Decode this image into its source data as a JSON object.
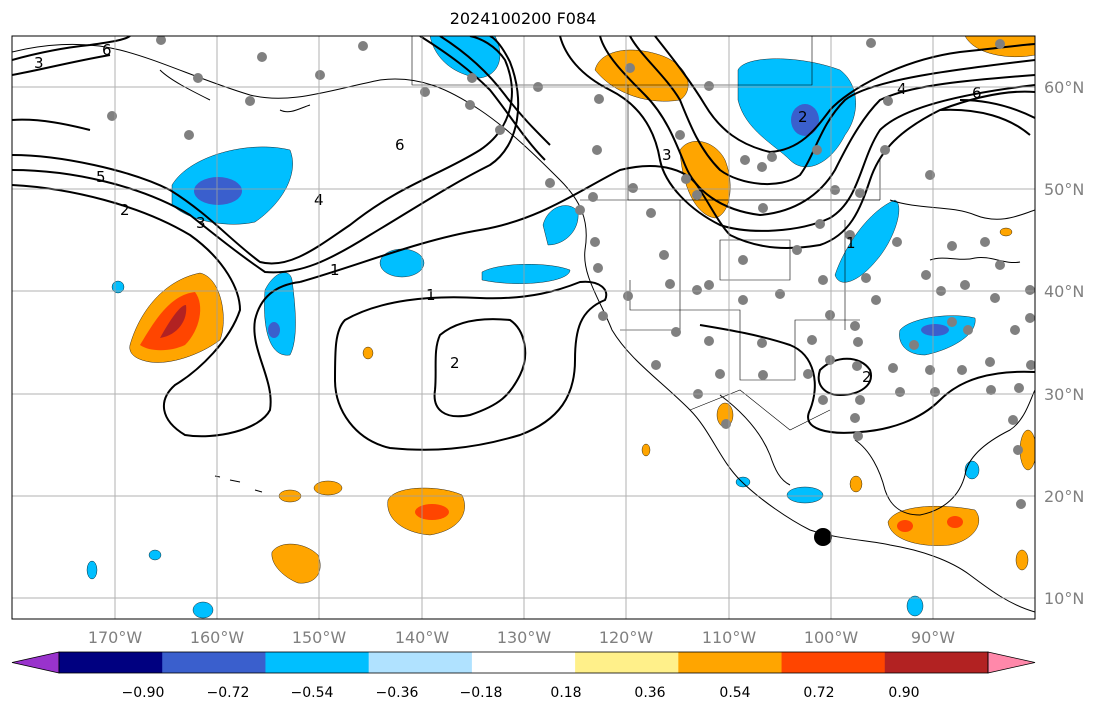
{
  "title": "2024100200 F084",
  "lon_labels": [
    "170°W",
    "160°W",
    "150°W",
    "140°W",
    "130°W",
    "120°W",
    "110°W",
    "100°W",
    "90°W"
  ],
  "lat_labels": [
    "60°N",
    "50°N",
    "40°N",
    "30°N",
    "20°N",
    "10°N"
  ],
  "contour_labels": [
    "6",
    "4",
    "6",
    "5",
    "2",
    "3",
    "6",
    "4",
    "1",
    "1",
    "2",
    "3",
    "2",
    "1",
    "2"
  ],
  "colorbar": {
    "ticks": [
      "−0.90",
      "−0.72",
      "−0.54",
      "−0.36",
      "−0.18",
      "0.18",
      "0.36",
      "0.54",
      "0.72",
      "0.90"
    ],
    "colors": [
      "#9933cc",
      "#000080",
      "#3a5fcd",
      "#00bfff",
      "#b0e2ff",
      "#ffffff",
      "#fff08a",
      "#ffa500",
      "#ff4500",
      "#b22222",
      "#ff88aa"
    ]
  }
}
